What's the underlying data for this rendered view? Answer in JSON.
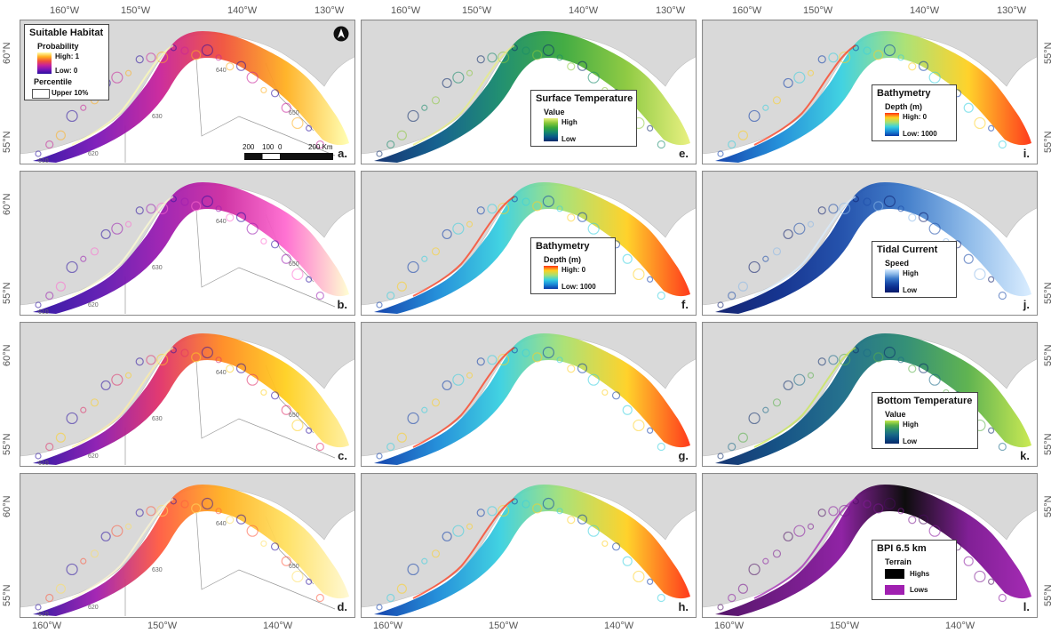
{
  "axes": {
    "top_ticks": [
      "160°W",
      "150°W",
      "140°W",
      "130°W"
    ],
    "bottom_ticks": [
      "160°W",
      "150°W",
      "140°W"
    ],
    "lat_ticks": [
      "60°N",
      "55°N"
    ]
  },
  "zones": [
    "610",
    "620",
    "630",
    "640",
    "650"
  ],
  "scale_bar": {
    "ticks": [
      "200",
      "100",
      "0",
      "200 Km"
    ]
  },
  "colors": {
    "land": "#d9d9d9",
    "ocean": "#ffffff",
    "zone_lines": "#999999"
  },
  "panels": [
    {
      "id": "a",
      "letter": "a.",
      "ramp": [
        "#2a0fa0",
        "#7a16b8",
        "#c8229a",
        "#f0503a",
        "#ffb020",
        "#ffffb0"
      ],
      "zones_shown": true
    },
    {
      "id": "b",
      "letter": "b.",
      "ramp": [
        "#2a0fa0",
        "#5a16b0",
        "#9a1cb0",
        "#cc2aa0",
        "#ff6bd0",
        "#ffffd0"
      ],
      "zones_shown": true
    },
    {
      "id": "c",
      "letter": "c.",
      "ramp": [
        "#2a0fa0",
        "#8a18b0",
        "#e0306a",
        "#ff8a20",
        "#ffd020",
        "#fff0a0"
      ],
      "zones_shown": true
    },
    {
      "id": "d",
      "letter": "d.",
      "ramp": [
        "#2a0fa0",
        "#a01cb0",
        "#ff5a40",
        "#ffb020",
        "#ffe060",
        "#fff8d0"
      ],
      "zones_shown": true
    },
    {
      "id": "e",
      "letter": "e.",
      "ramp": [
        "#0b2a6a",
        "#0a5a8a",
        "#168a6a",
        "#3aa83a",
        "#8ac83a",
        "#e8f07a"
      ],
      "zones_shown": false
    },
    {
      "id": "f",
      "letter": "f.",
      "ramp": [
        "#0a3aa8",
        "#1a8ad8",
        "#38d0e0",
        "#a8e070",
        "#ffd020",
        "#ff3010"
      ],
      "zones_shown": false
    },
    {
      "id": "g",
      "letter": "g.",
      "ramp": [
        "#0a3aa8",
        "#1a8ad8",
        "#38d0e0",
        "#a8e070",
        "#ffd020",
        "#ff3010"
      ],
      "zones_shown": false
    },
    {
      "id": "h",
      "letter": "h.",
      "ramp": [
        "#0a3aa8",
        "#1a8ad8",
        "#38d0e0",
        "#a8e070",
        "#ffd020",
        "#ff3010"
      ],
      "zones_shown": false
    },
    {
      "id": "i",
      "letter": "i.",
      "ramp": [
        "#0a3aa8",
        "#1a8ad8",
        "#38d0e0",
        "#a8e070",
        "#ffd020",
        "#ff3010"
      ],
      "zones_shown": false
    },
    {
      "id": "j",
      "letter": "j.",
      "ramp": [
        "#0a1a6a",
        "#0a2a8a",
        "#1a4aa8",
        "#3a78c8",
        "#8ab8e8",
        "#d8ecff"
      ],
      "zones_shown": false
    },
    {
      "id": "k",
      "letter": "k.",
      "ramp": [
        "#0a2a6a",
        "#0a4a80",
        "#1a6a88",
        "#2a8a70",
        "#58b048",
        "#c8e84a"
      ],
      "zones_shown": false
    },
    {
      "id": "l",
      "letter": "l.",
      "ramp": [
        "#4a0a60",
        "#6a1080",
        "#8a18a0",
        "#000000",
        "#7a1490",
        "#a020b0"
      ],
      "zones_shown": false
    }
  ],
  "legends": {
    "a": {
      "title": "Suitable Habitat",
      "sub": "Probability",
      "high": "High: 1",
      "low": "Low: 0",
      "sub2": "Percentile",
      "item": "Upper 10%"
    },
    "e": {
      "title": "Surface Temperature",
      "sub": "Value",
      "high": "High",
      "low": "Low"
    },
    "f": {
      "title": "Bathymetry",
      "sub": "Depth (m)",
      "high": "High: 0",
      "low": "Low: 1000"
    },
    "i": {
      "title": "Bathymetry",
      "sub": "Depth (m)",
      "high": "High: 0",
      "low": "Low: 1000"
    },
    "j": {
      "title": "Tidal Current",
      "sub": "Speed",
      "high": "High",
      "low": "Low"
    },
    "k": {
      "title": "Bottom Temperature",
      "sub": "Value",
      "high": "High",
      "low": "Low"
    },
    "l": {
      "title": "BPI 6.5 km",
      "sub": "Terrain",
      "high": "Highs",
      "low": "Lows"
    }
  }
}
